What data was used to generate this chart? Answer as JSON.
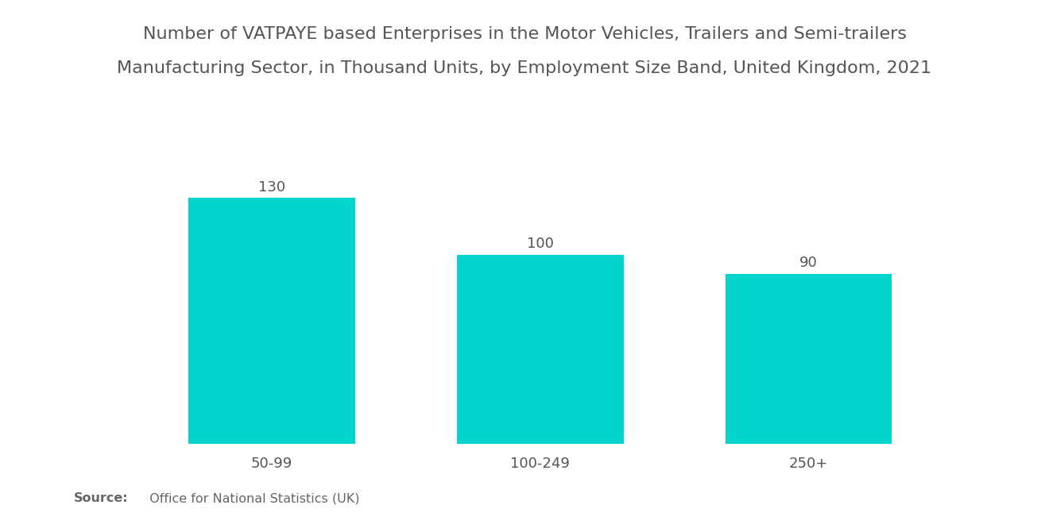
{
  "title_line1": "Number of VATPAYE based Enterprises in the Motor Vehicles, Trailers and Semi-trailers",
  "title_line2": "Manufacturing Sector, in Thousand Units, by Employment Size Band, United Kingdom, 2021",
  "categories": [
    "50-99",
    "100-249",
    "250+"
  ],
  "values": [
    130,
    100,
    90
  ],
  "bar_color": "#00D4CC",
  "ylim": [
    0,
    165
  ],
  "background_color": "#ffffff",
  "title_fontsize": 16,
  "label_fontsize": 13,
  "value_fontsize": 13,
  "source_bold": "Source:",
  "source_text": "  Office for National Statistics (UK)",
  "bar_width": 0.62
}
